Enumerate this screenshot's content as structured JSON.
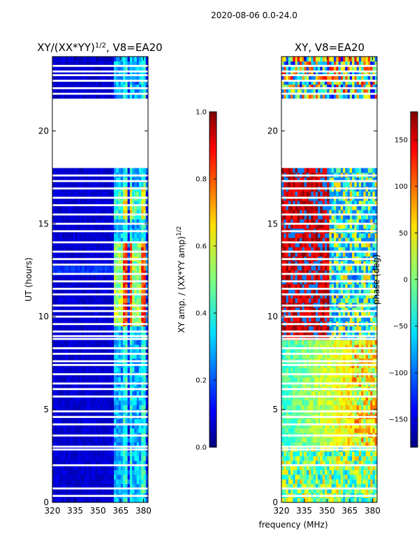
{
  "chart_data": {
    "suptitle": "2020-08-06 0.0-24.0",
    "type": "heatmap",
    "xlabel": "frequency (MHz)",
    "colormap": "jet",
    "panels": [
      {
        "name": "amp",
        "title_main": "XY/(XX*YY)",
        "title_sup": "1/2",
        "title_tail": ", V8=EA20",
        "ylabel": "UT (hours)",
        "xlim": [
          320,
          383
        ],
        "ylim": [
          0,
          24
        ],
        "xticks": [
          320,
          335,
          350,
          365,
          380
        ],
        "yticks": [
          0,
          5,
          10,
          15,
          20
        ],
        "colorbar": {
          "label_main": "XY amp. / (XX*YY amp)",
          "label_sup": "1/2",
          "range": [
            0,
            1
          ],
          "ticks": [
            "0.0",
            "0.2",
            "0.4",
            "0.6",
            "0.8",
            "1.0"
          ]
        }
      },
      {
        "name": "phase",
        "title_main": "XY, V8=EA20",
        "title_sup": "",
        "title_tail": "",
        "ylabel": "",
        "xlim": [
          320,
          383
        ],
        "ylim": [
          0,
          24
        ],
        "xticks": [
          320,
          335,
          350,
          365,
          380
        ],
        "yticks": [
          0,
          5,
          10,
          15,
          20
        ],
        "colorbar": {
          "label_main": "phase (deg)",
          "label_sup": "",
          "range": [
            -180,
            180
          ],
          "ticks": [
            "-150",
            "-100",
            "-50",
            "0",
            "50",
            "100",
            "150"
          ]
        }
      }
    ],
    "data_gap_hours": [
      17.9,
      21.8
    ],
    "blank_rows_hours": [
      0.35,
      0.75,
      2.0,
      2.85,
      3.0,
      3.6,
      4.2,
      4.6,
      4.9,
      5.7,
      6.1,
      6.4,
      6.9,
      7.4,
      7.6,
      8.0,
      8.3,
      8.8,
      8.95,
      9.2,
      9.6,
      10.0,
      10.3,
      10.6,
      11.2,
      11.5,
      11.9,
      12.3,
      12.8,
      13.1,
      13.5,
      14.0,
      14.6,
      15.0,
      15.5,
      16.0,
      16.4,
      16.9,
      17.3,
      17.6,
      22.0,
      22.3,
      22.7,
      23.0,
      23.2,
      23.5
    ],
    "bright_channels_mhz": [
      362,
      363.5,
      365,
      367,
      368.5,
      372,
      374,
      377,
      379,
      380.5
    ]
  }
}
